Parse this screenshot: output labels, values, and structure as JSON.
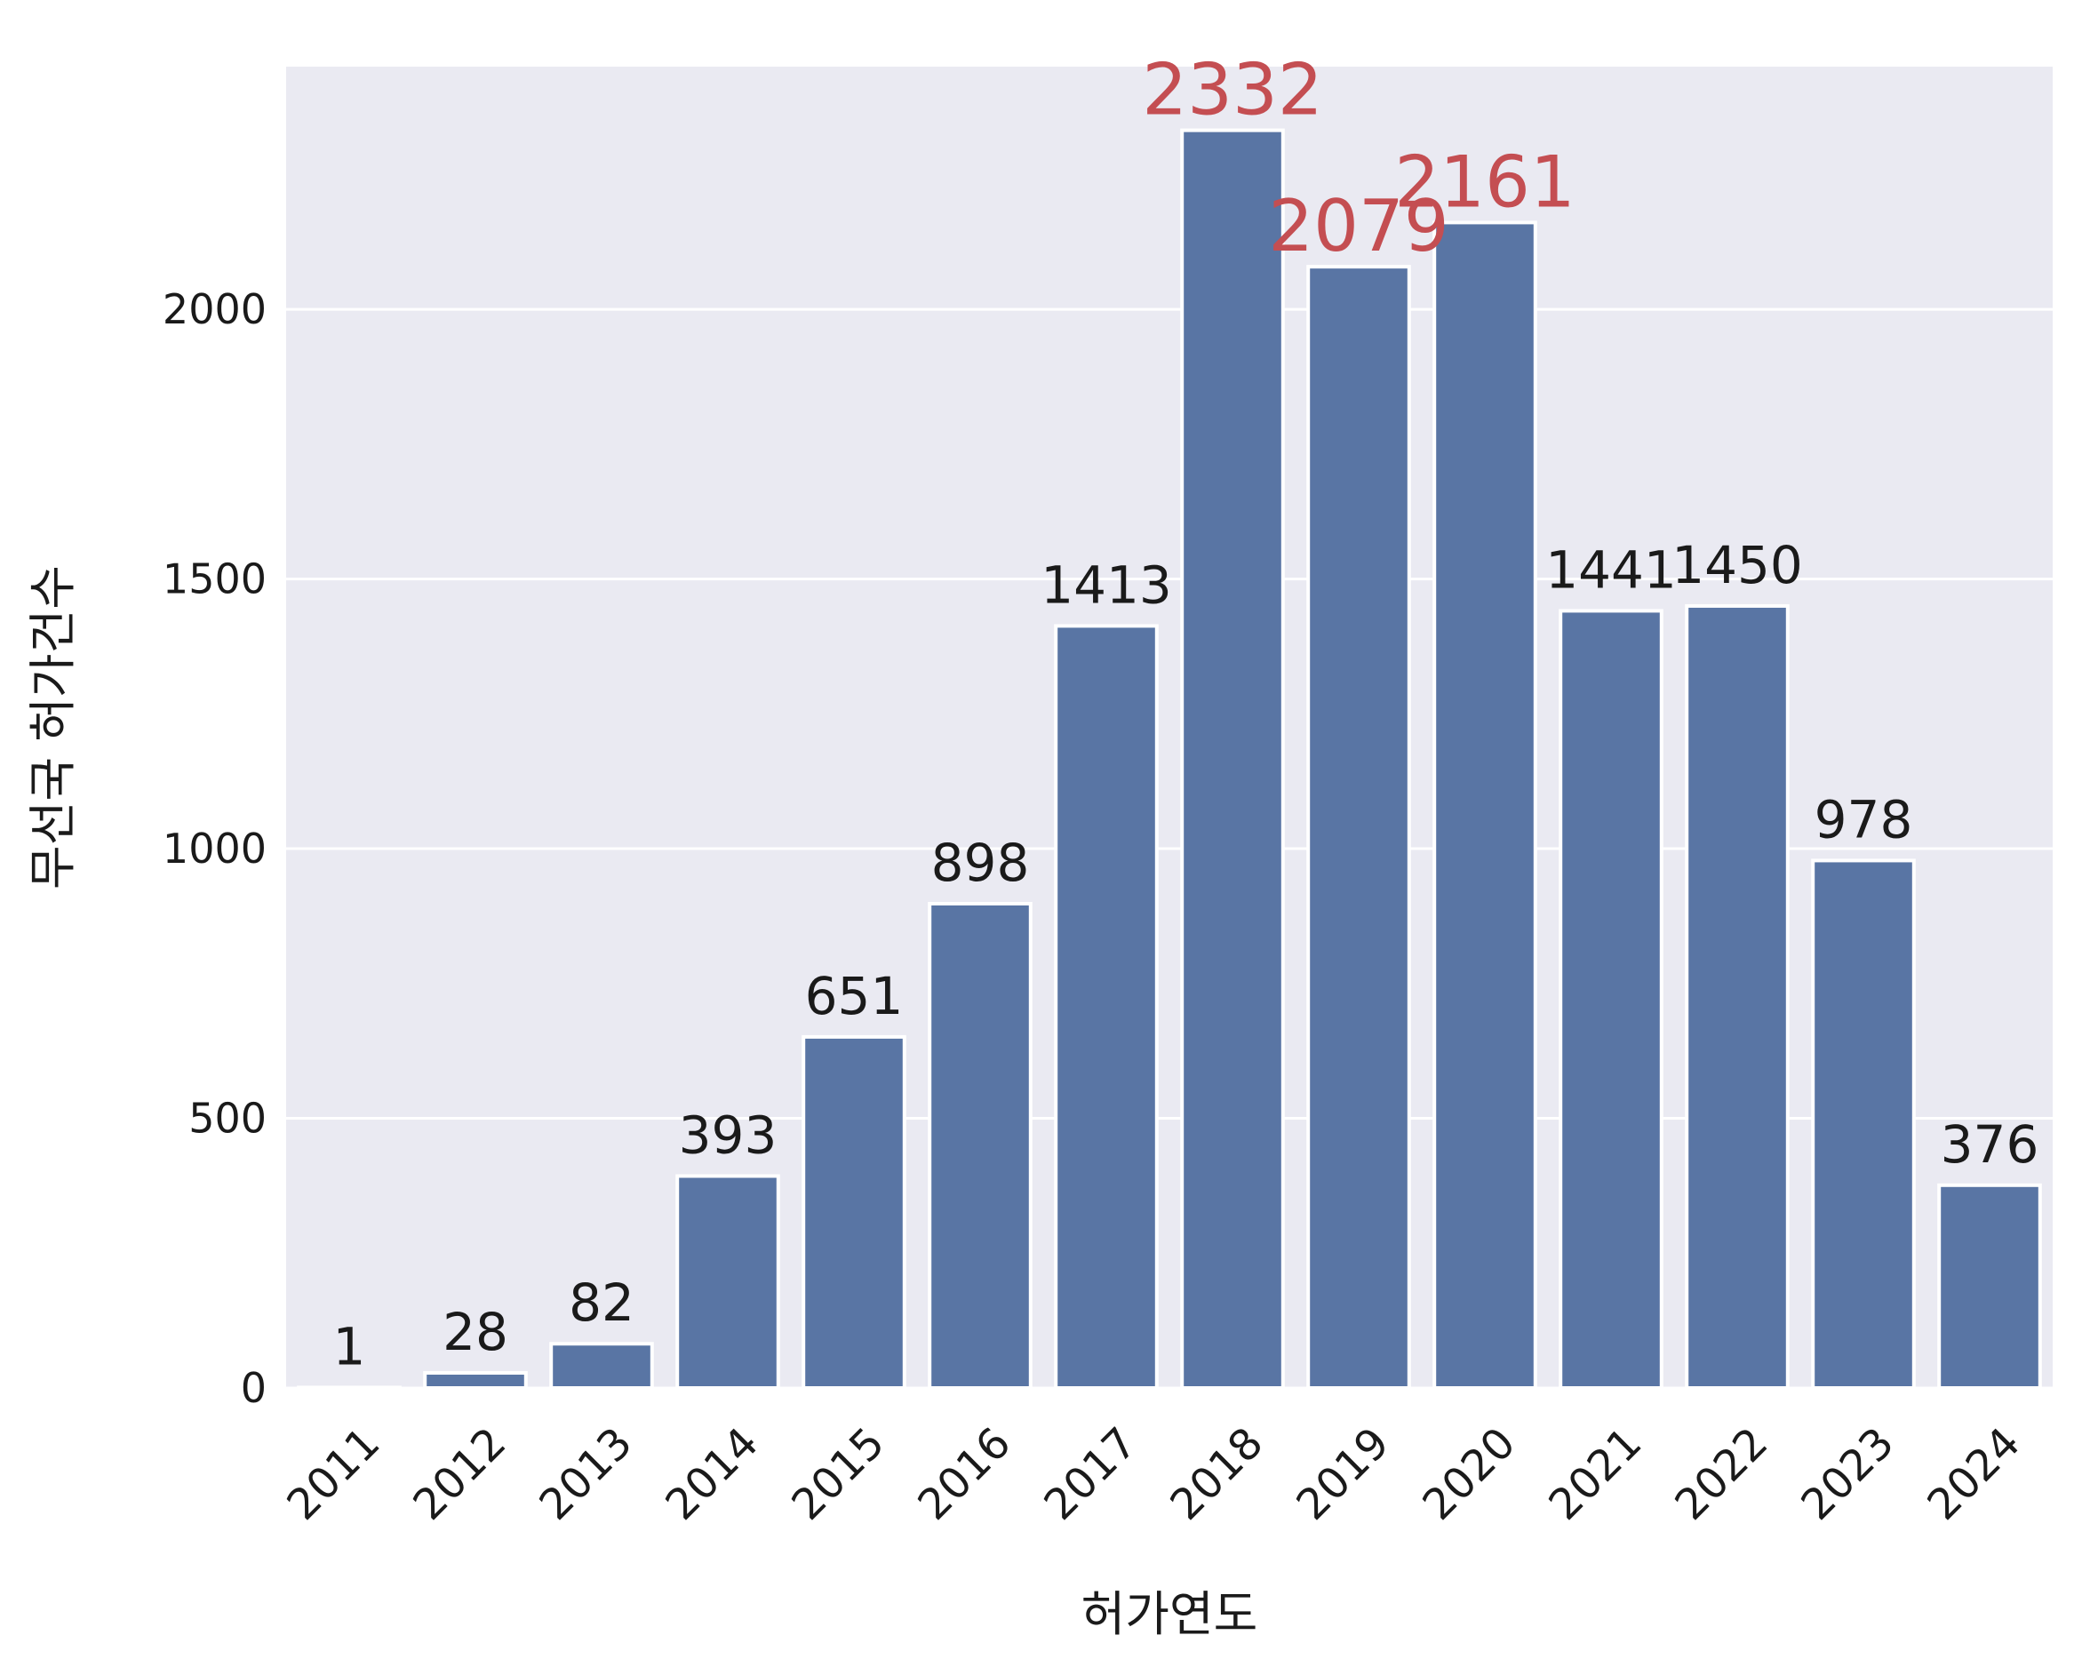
{
  "chart_data": {
    "type": "bar",
    "categories": [
      "2011",
      "2012",
      "2013",
      "2014",
      "2015",
      "2016",
      "2017",
      "2018",
      "2019",
      "2020",
      "2021",
      "2022",
      "2023",
      "2024"
    ],
    "values": [
      1,
      28,
      82,
      393,
      651,
      898,
      1413,
      2332,
      2079,
      2161,
      1441,
      1450,
      978,
      376
    ],
    "value_labels": [
      "1",
      "28",
      "82",
      "393",
      "651",
      "898",
      "1413",
      "2332",
      "2079",
      "2161",
      "1441",
      "1450",
      "978",
      "376"
    ],
    "highlighted": [
      "2018",
      "2019",
      "2020"
    ],
    "xlabel": "허가연도",
    "ylabel": "무선국 허가건수",
    "ylim": [
      0,
      2450
    ],
    "yticks": [
      0,
      500,
      1000,
      1500,
      2000
    ],
    "ytick_labels": [
      "0",
      "500",
      "1000",
      "1500",
      "2000"
    ],
    "grid": true,
    "colors": {
      "background": "#eaeaf2",
      "bar": "#5975a4",
      "bar_edge": "#ffffff",
      "grid": "#ffffff",
      "label_normal": "#1a1a1a",
      "label_highlight": "#c44e52"
    }
  }
}
